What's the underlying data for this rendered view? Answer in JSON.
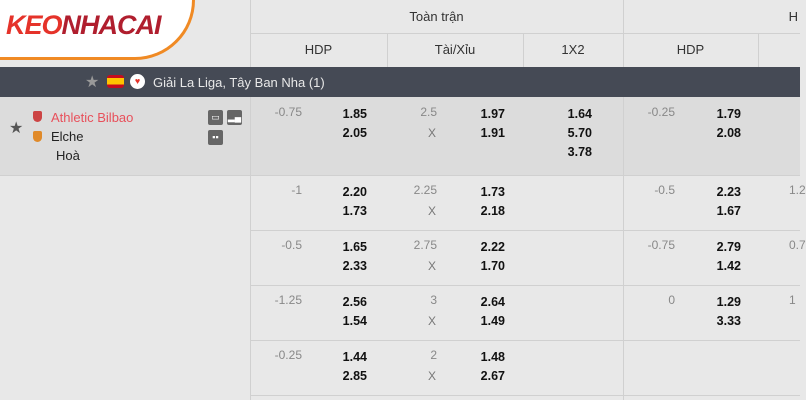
{
  "brand": {
    "logo_text_a": "KEO",
    "logo_text_b": "NHACAI"
  },
  "header": {
    "group_full": "Toàn trận",
    "group_half_partial": "H",
    "cols": [
      "HDP",
      "Tài/Xỉu",
      "1X2",
      "HDP"
    ]
  },
  "league": {
    "name": "Giải La Liga, Tây Ban Nha (1)",
    "flag_colors": [
      "#c60b1e",
      "#ffc400"
    ]
  },
  "match": {
    "home": "Athletic Bilbao",
    "away": "Elche",
    "draw": "Hoà",
    "home_color": "#e8505b"
  },
  "rows": [
    {
      "hdp": "-0.75",
      "hdp_o1": "1.85",
      "hdp_o2": "2.05",
      "ou": "2.5",
      "ou_o1": "1.97",
      "ou_x": "X",
      "ou_o2": "1.91",
      "x12": [
        "1.64",
        "5.70",
        "3.78"
      ],
      "h_hdp": "-0.25",
      "h_o1": "1.79",
      "h_o2": "2.08",
      "h_partial": ""
    },
    {
      "hdp": "-1",
      "hdp_o1": "2.20",
      "hdp_o2": "1.73",
      "ou": "2.25",
      "ou_o1": "1.73",
      "ou_x": "X",
      "ou_o2": "2.18",
      "h_hdp": "-0.5",
      "h_o1": "2.23",
      "h_o2": "1.67",
      "h_partial": "1.2"
    },
    {
      "hdp": "-0.5",
      "hdp_o1": "1.65",
      "hdp_o2": "2.33",
      "ou": "2.75",
      "ou_o1": "2.22",
      "ou_x": "X",
      "ou_o2": "1.70",
      "h_hdp": "-0.75",
      "h_o1": "2.79",
      "h_o2": "1.42",
      "h_partial": "0.7"
    },
    {
      "hdp": "-1.25",
      "hdp_o1": "2.56",
      "hdp_o2": "1.54",
      "ou": "3",
      "ou_o1": "2.64",
      "ou_x": "X",
      "ou_o2": "1.49",
      "h_hdp": "0",
      "h_o1": "1.29",
      "h_o2": "3.33",
      "h_partial": "1"
    },
    {
      "hdp": "-0.25",
      "hdp_o1": "1.44",
      "hdp_o2": "2.85",
      "ou": "2",
      "ou_o1": "1.48",
      "ou_x": "X",
      "ou_o2": "2.67",
      "h_hdp": "",
      "h_o1": "",
      "h_o2": "",
      "h_partial": ""
    }
  ]
}
